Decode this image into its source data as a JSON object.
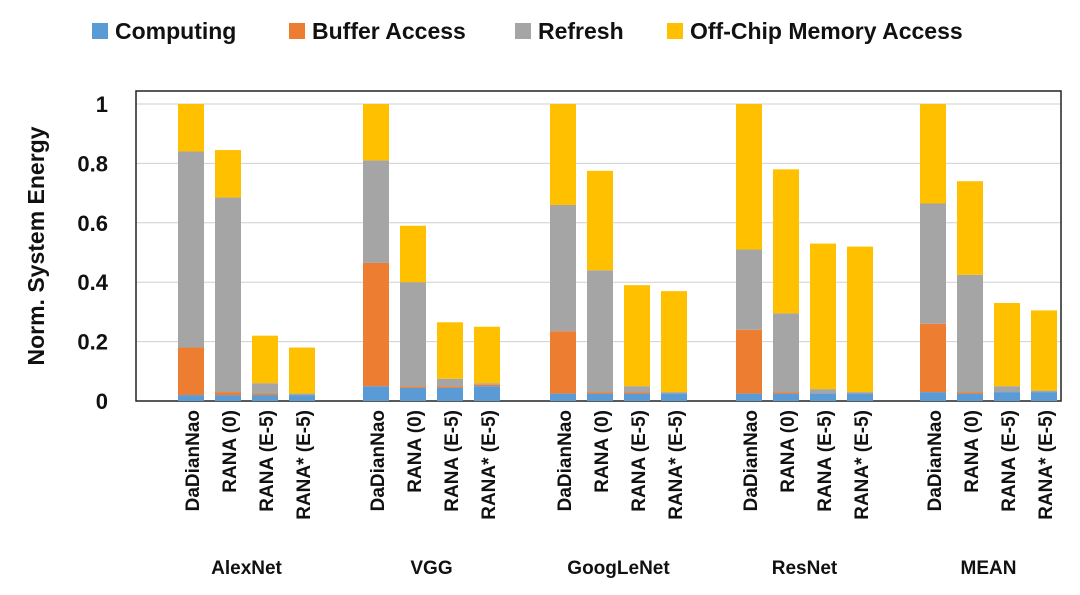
{
  "chart_data": {
    "type": "bar",
    "stacked": true,
    "ylabel": "Norm. System Energy",
    "ylim": [
      0,
      1
    ],
    "yticks": [
      "0",
      "0.2",
      "0.4",
      "0.6",
      "0.8",
      "1"
    ],
    "grid": true,
    "legend_position": "top",
    "series": [
      {
        "name": "Computing",
        "color": "#5b9bd5"
      },
      {
        "name": "Buffer Access",
        "color": "#ed7d31"
      },
      {
        "name": "Refresh",
        "color": "#a5a5a5"
      },
      {
        "name": "Off-Chip Memory Access",
        "color": "#ffc000"
      }
    ],
    "groups": [
      {
        "name": "AlexNet",
        "bars": [
          {
            "label": "DaDianNao",
            "values": [
              0.02,
              0.16,
              0.66,
              0.16
            ]
          },
          {
            "label": "RANA (0)",
            "values": [
              0.02,
              0.01,
              0.655,
              0.16
            ]
          },
          {
            "label": "RANA (E-5)",
            "values": [
              0.02,
              0.005,
              0.035,
              0.16
            ]
          },
          {
            "label": "RANA* (E-5)",
            "values": [
              0.02,
              0.0,
              0.005,
              0.155
            ]
          }
        ]
      },
      {
        "name": "VGG",
        "bars": [
          {
            "label": "DaDianNao",
            "values": [
              0.05,
              0.415,
              0.345,
              0.19
            ]
          },
          {
            "label": "RANA (0)",
            "values": [
              0.045,
              0.005,
              0.35,
              0.19
            ]
          },
          {
            "label": "RANA (E-5)",
            "values": [
              0.045,
              0.005,
              0.025,
              0.19
            ]
          },
          {
            "label": "RANA* (E-5)",
            "values": [
              0.05,
              0.005,
              0.005,
              0.19
            ]
          }
        ]
      },
      {
        "name": "GoogLeNet",
        "bars": [
          {
            "label": "DaDianNao",
            "values": [
              0.025,
              0.21,
              0.425,
              0.34
            ]
          },
          {
            "label": "RANA (0)",
            "values": [
              0.025,
              0.005,
              0.41,
              0.335
            ]
          },
          {
            "label": "RANA (E-5)",
            "values": [
              0.025,
              0.005,
              0.02,
              0.34
            ]
          },
          {
            "label": "RANA* (E-5)",
            "values": [
              0.025,
              0.0,
              0.005,
              0.34
            ]
          }
        ]
      },
      {
        "name": "ResNet",
        "bars": [
          {
            "label": "DaDianNao",
            "values": [
              0.025,
              0.215,
              0.27,
              0.49
            ]
          },
          {
            "label": "RANA (0)",
            "values": [
              0.025,
              0.005,
              0.265,
              0.485
            ]
          },
          {
            "label": "RANA (E-5)",
            "values": [
              0.025,
              0.0,
              0.015,
              0.49
            ]
          },
          {
            "label": "RANA* (E-5)",
            "values": [
              0.025,
              0.0,
              0.005,
              0.49
            ]
          }
        ]
      },
      {
        "name": "MEAN",
        "bars": [
          {
            "label": "DaDianNao",
            "values": [
              0.03,
              0.23,
              0.405,
              0.335
            ]
          },
          {
            "label": "RANA (0)",
            "values": [
              0.025,
              0.005,
              0.395,
              0.315
            ]
          },
          {
            "label": "RANA (E-5)",
            "values": [
              0.03,
              0.0,
              0.02,
              0.28
            ]
          },
          {
            "label": "RANA* (E-5)",
            "values": [
              0.03,
              0.0,
              0.005,
              0.27
            ]
          }
        ]
      }
    ]
  }
}
